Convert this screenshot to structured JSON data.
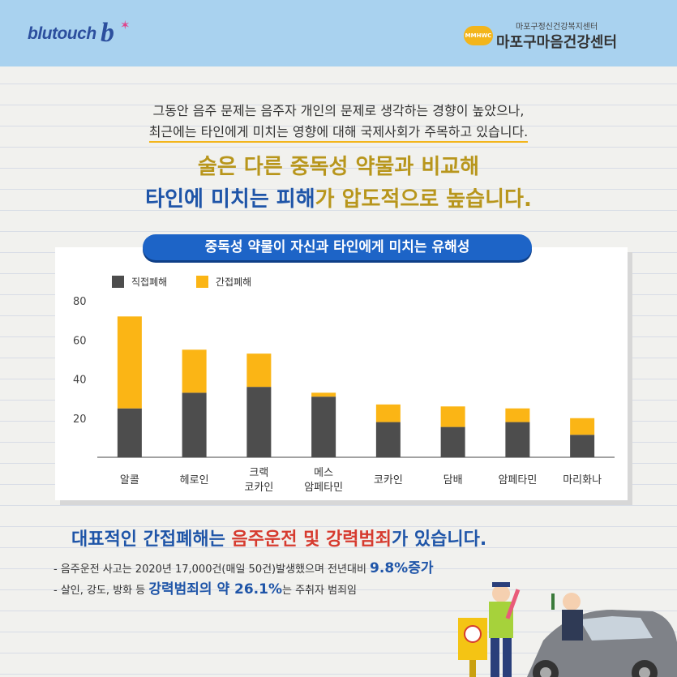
{
  "header": {
    "left_logo": "blutouch",
    "left_logo_mark": "b",
    "right_logo_small": "마포구정신건강복지센터",
    "right_logo_main": "마포구마음건강센터",
    "right_logo_badge": "MMHWC"
  },
  "intro": {
    "line1": "그동안 음주 문제는 음주자 개인의 문제로 생각하는 경향이 높았으나,",
    "line2": "최근에는 타인에게 미치는 영향에 대해 국제사회가 주목하고 있습니다."
  },
  "headline": {
    "line1": "술은 다른 중독성 약물과 비교해",
    "line2_a": "타인에 미치는 피해",
    "line2_b": "가 압도적으로 높습니다."
  },
  "chart_data": {
    "type": "bar",
    "stacked": true,
    "title": "중독성 약물이 자신과 타인에게 미치는 유해성",
    "categories": [
      [
        "알콜"
      ],
      [
        "헤로인"
      ],
      [
        "크랙",
        "코카인"
      ],
      [
        "메스",
        "암페타민"
      ],
      [
        "코카인"
      ],
      [
        "담배"
      ],
      [
        "암페타민"
      ],
      [
        "마리화나"
      ]
    ],
    "series": [
      {
        "name": "직접폐해",
        "color": "#4d4d4d",
        "values": [
          25,
          33,
          36,
          31,
          18,
          15.5,
          18,
          11.5
        ]
      },
      {
        "name": "간접폐해",
        "color": "#fbb515",
        "values": [
          47,
          22,
          17,
          2,
          9,
          10.5,
          7,
          8.5
        ]
      }
    ],
    "ylim": [
      0,
      80
    ],
    "yticks": [
      20,
      40,
      60,
      80
    ],
    "grid": false,
    "legend": "top-left"
  },
  "section2": {
    "headline_a": "대표적인 간접폐해는 ",
    "headline_b": "음주운전 및 강력범죄",
    "headline_c": "가 있습니다.",
    "bullet1_a": "-  음주운전 사고는 2020년 17,000건(매일 50건)발생했으며 전년대비 ",
    "bullet1_b": "9.8%증가",
    "bullet2_a": "-  살인, 강도, 방화 등 ",
    "bullet2_b": "강력범죄의 약 26.1%",
    "bullet2_c": "는 주취자 범죄임"
  }
}
